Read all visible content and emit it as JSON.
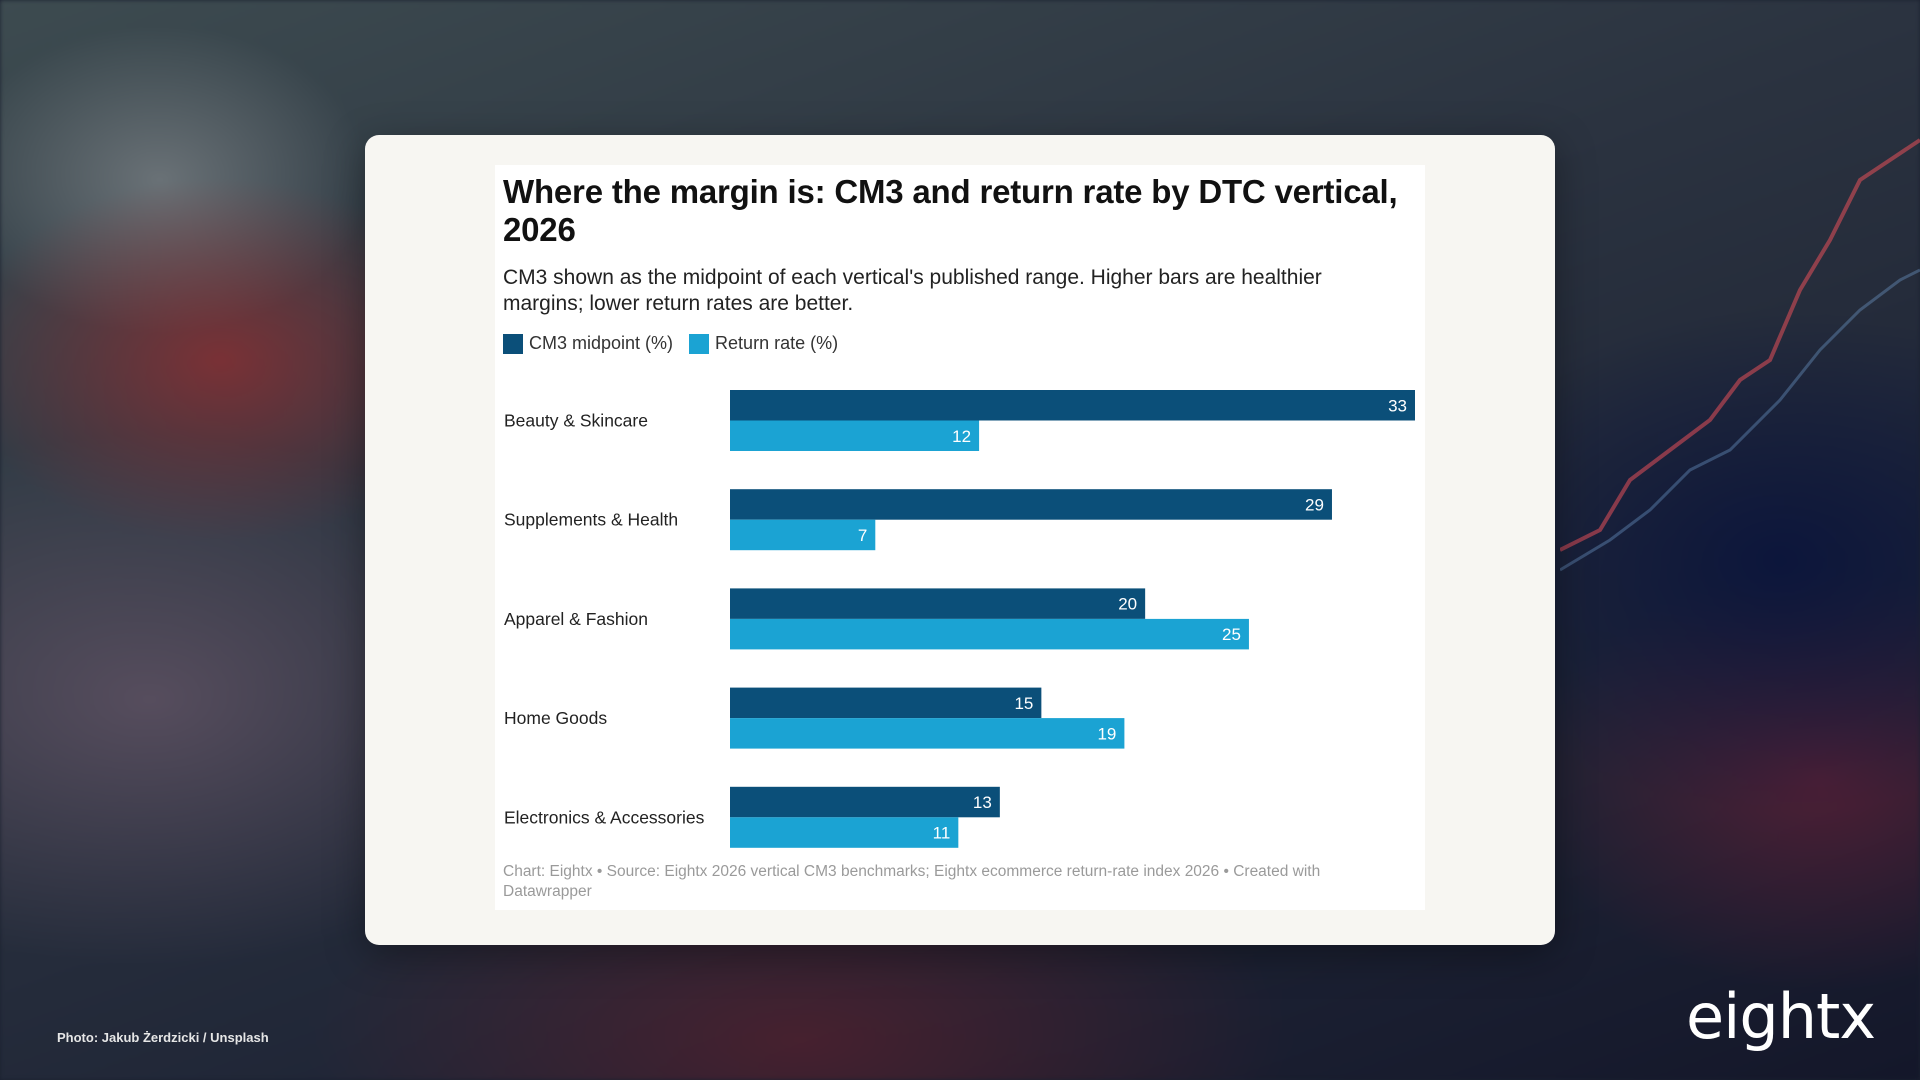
{
  "chart_data": {
    "type": "bar",
    "orientation": "horizontal",
    "title": "Where the margin is: CM3 and return rate by DTC vertical, 2026",
    "subtitle": "CM3 shown as the midpoint of each vertical's published range. Higher bars are healthier margins; lower return rates are better.",
    "categories": [
      "Beauty & Skincare",
      "Supplements & Health",
      "Apparel & Fashion",
      "Home Goods",
      "Electronics & Accessories"
    ],
    "series": [
      {
        "name": "CM3 midpoint (%)",
        "values": [
          33,
          29,
          20,
          15,
          13
        ],
        "color": "#0b4f79"
      },
      {
        "name": "Return rate (%)",
        "values": [
          12,
          7,
          25,
          19,
          11
        ],
        "color": "#1ba3d3"
      }
    ],
    "xlim": [
      0,
      33
    ],
    "grid": false,
    "legend_position": "top-left",
    "source": "Chart: Eightx • Source: Eightx 2026 vertical CM3 benchmarks; Eightx ecommerce return-rate index 2026 • Created with Datawrapper"
  },
  "footer": {
    "photo_credit": "Photo: Jakub Żerdzicki / Unsplash",
    "brand": "eightx"
  }
}
